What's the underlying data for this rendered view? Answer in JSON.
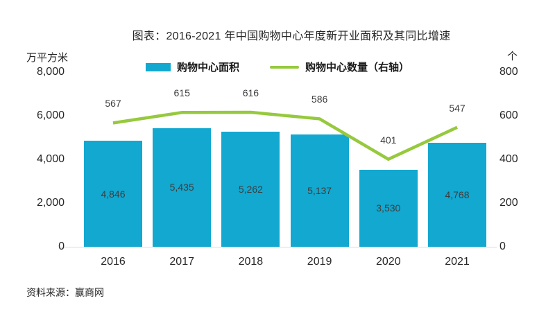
{
  "source": "资料来源：赢商网",
  "chart_data": {
    "type": "bar+line combo",
    "title": "图表：2016-2021 年中国购物中心年度新开业面积及其同比增速",
    "categories": [
      "2016",
      "2017",
      "2018",
      "2019",
      "2020",
      "2021"
    ],
    "series": [
      {
        "name": "购物中心面积",
        "type": "bar",
        "axis": "left",
        "color": "#12A8D0",
        "values": [
          4846,
          5435,
          5262,
          5137,
          3530,
          4768
        ],
        "labels": [
          "4,846",
          "5,435",
          "5,262",
          "5,137",
          "3,530",
          "4,768"
        ]
      },
      {
        "name": "购物中心数量（右轴）",
        "type": "line",
        "axis": "right",
        "color": "#96C93D",
        "values": [
          567,
          615,
          616,
          586,
          401,
          547
        ],
        "labels": [
          "567",
          "615",
          "616",
          "586",
          "401",
          "547"
        ]
      }
    ],
    "left_axis": {
      "unit": "万平方米",
      "range": [
        0,
        8000
      ],
      "ticks": [
        0,
        2000,
        4000,
        6000,
        8000
      ]
    },
    "right_axis": {
      "unit": "个",
      "range": [
        0,
        800
      ],
      "ticks": [
        0,
        200,
        400,
        600,
        800
      ]
    },
    "legend_position": "top",
    "grid": false,
    "axis_line_color": "#D9D9D9"
  }
}
